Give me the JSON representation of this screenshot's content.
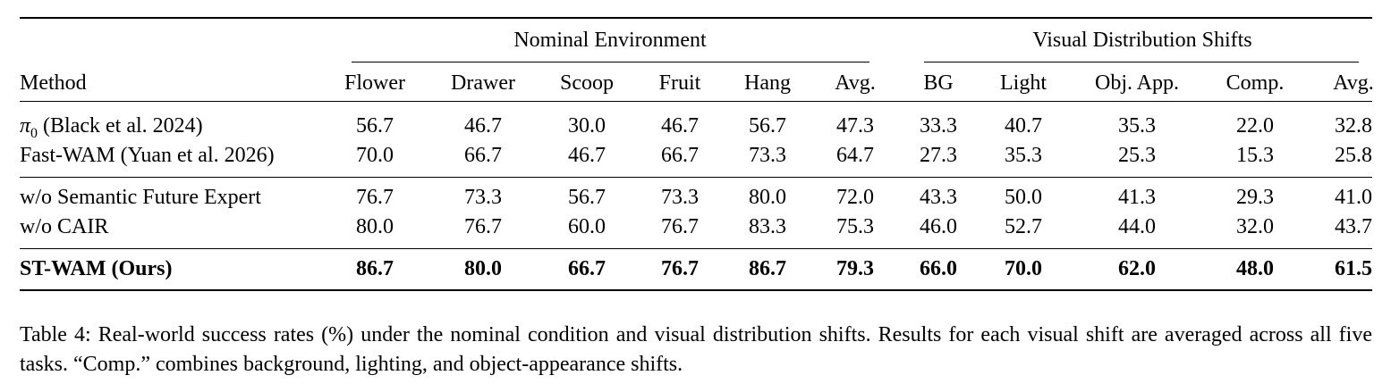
{
  "table": {
    "group_headers": [
      "Nominal Environment",
      "Visual Distribution Shifts"
    ],
    "columns": [
      "Method",
      "Flower",
      "Drawer",
      "Scoop",
      "Fruit",
      "Hang",
      "Avg.",
      "BG",
      "Light",
      "Obj. App.",
      "Comp.",
      "Avg."
    ],
    "rows": [
      {
        "method_main": "π",
        "method_sub": "0",
        "method_rest": " (Black et al. 2024)",
        "values": [
          "56.7",
          "46.7",
          "30.0",
          "46.7",
          "56.7",
          "47.3",
          "33.3",
          "40.7",
          "35.3",
          "22.0",
          "32.8"
        ]
      },
      {
        "method": "Fast-WAM (Yuan et al. 2026)",
        "values": [
          "70.0",
          "66.7",
          "46.7",
          "66.7",
          "73.3",
          "64.7",
          "27.3",
          "35.3",
          "25.3",
          "15.3",
          "25.8"
        ]
      },
      {
        "method": "w/o Semantic Future Expert",
        "values": [
          "76.7",
          "73.3",
          "56.7",
          "73.3",
          "80.0",
          "72.0",
          "43.3",
          "50.0",
          "41.3",
          "29.3",
          "41.0"
        ]
      },
      {
        "method": "w/o CAIR",
        "values": [
          "80.0",
          "76.7",
          "60.0",
          "76.7",
          "83.3",
          "75.3",
          "46.0",
          "52.7",
          "44.0",
          "32.0",
          "43.7"
        ]
      },
      {
        "method": "ST-WAM (Ours)",
        "values": [
          "86.7",
          "80.0",
          "66.7",
          "76.7",
          "86.7",
          "79.3",
          "66.0",
          "70.0",
          "62.0",
          "48.0",
          "61.5"
        ]
      }
    ]
  },
  "caption": "Table 4: Real-world success rates (%) under the nominal condition and visual distribution shifts. Results for each visual shift are averaged across all five tasks. “Comp.” combines background, lighting, and object-appearance shifts."
}
